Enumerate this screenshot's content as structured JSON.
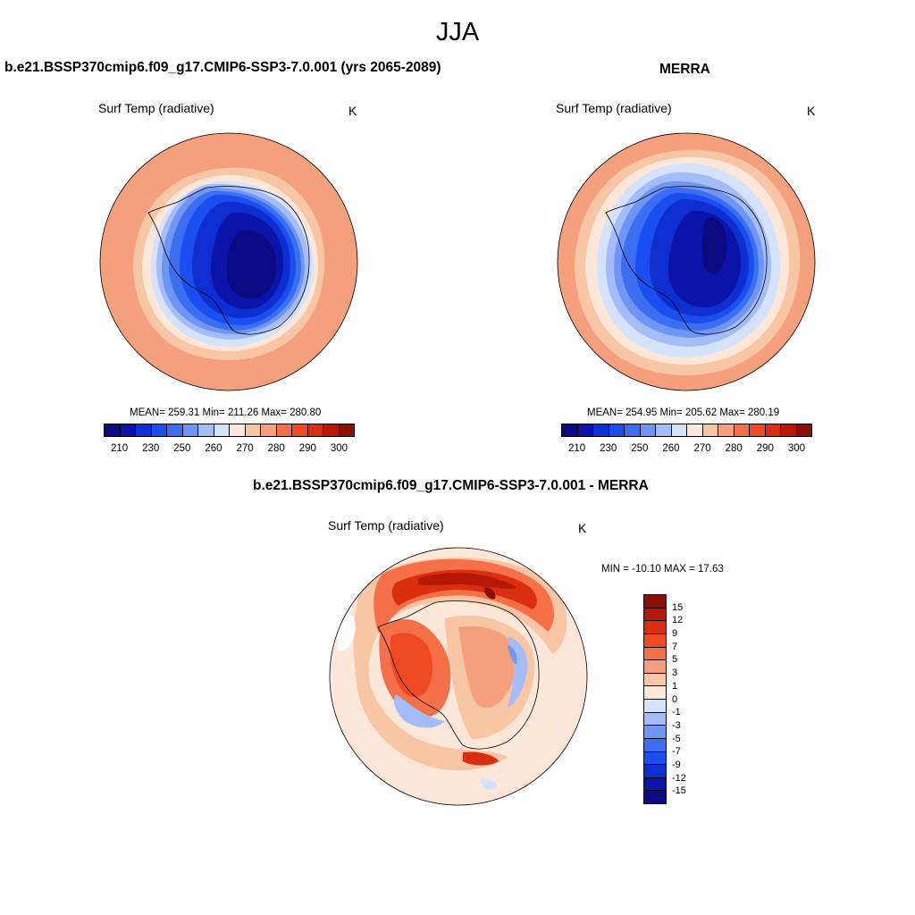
{
  "title": "JJA",
  "panels": {
    "model": {
      "title": "b.e21.BSSP370cmip6.f09_g17.CMIP6-SSP3-7.0.001 (yrs 2065-2089)",
      "variable": "Surf Temp (radiative)",
      "units": "K",
      "stats": "MEAN= 259.31  Min= 211.26  Max= 280.80"
    },
    "obs": {
      "title": "MERRA",
      "variable": "Surf Temp (radiative)",
      "units": "K",
      "stats": "MEAN= 254.95  Min= 205.62  Max= 280.19"
    },
    "diff": {
      "title": "b.e21.BSSP370cmip6.f09_g17.CMIP6-SSP3-7.0.001 - MERRA",
      "variable": "Surf Temp (radiative)",
      "units": "K",
      "stats": "MIN = -10.10 MAX =  17.63"
    }
  },
  "colorbar_abs": {
    "colors": [
      "#0a0a82",
      "#0a14a8",
      "#0d2fd1",
      "#1a4ef0",
      "#3c6ef2",
      "#6f95f5",
      "#a4bdf8",
      "#d4e2fb",
      "#fde7d8",
      "#f8c6a5",
      "#f5a07c",
      "#f57048",
      "#ee4a22",
      "#d92e10",
      "#b51806",
      "#8a0f06"
    ],
    "tick_labels": [
      "210",
      "230",
      "250",
      "260",
      "270",
      "280",
      "290",
      "300"
    ]
  },
  "colorbar_diff": {
    "colors": [
      "#8a0f06",
      "#b51806",
      "#d92e10",
      "#ee4a22",
      "#f57048",
      "#f5a07c",
      "#f8c6a5",
      "#fde7d8",
      "#d4e2fb",
      "#a4bdf8",
      "#6f95f5",
      "#3c6ef2",
      "#1a4ef0",
      "#0d2fd1",
      "#0a14a8",
      "#0a0a82"
    ],
    "tick_labels": [
      "15",
      "12",
      "9",
      "7",
      "5",
      "3",
      "1",
      "0",
      "-1",
      "-3",
      "-5",
      "-7",
      "-9",
      "-12",
      "-15"
    ]
  }
}
